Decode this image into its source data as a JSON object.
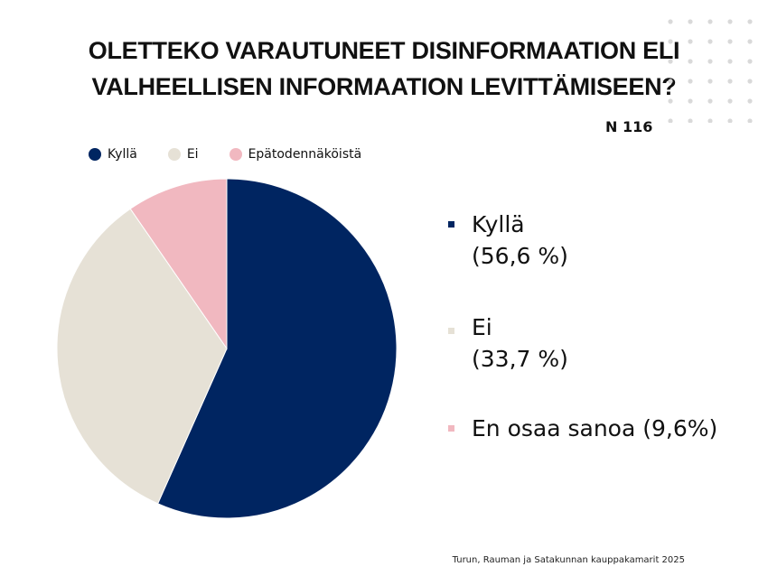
{
  "title": "OLETTEKO VARAUTUNEET DISINFORMAATION ELI VALHEELLISEN INFORMAATION LEVITTÄMISEEN?",
  "n_label": "N 116",
  "source": "Turun, Rauman ja Satakunnan kauppakamarit 2025",
  "colors": {
    "navy": "#002561",
    "beige": "#E6E1D6",
    "pink": "#F1B8C0",
    "dots": "#D9D9D9"
  },
  "chart_data": {
    "type": "pie",
    "title": "OLETTEKO VARAUTUNEET DISINFORMAATION ELI VALHEELLISEN INFORMAATION LEVITTÄMISEEN?",
    "legend": [
      "Kyllä",
      "Ei",
      "Epätodennäköistä"
    ],
    "legend_position": "top-left",
    "slices": [
      {
        "label": "Kyllä",
        "value": 56.6,
        "color": "#002561"
      },
      {
        "label": "Ei",
        "value": 33.7,
        "color": "#E6E1D6"
      },
      {
        "label": "Epätodennäköistä",
        "value": 9.6,
        "color": "#F1B8C0"
      }
    ],
    "annotations": [
      {
        "text_line1": "Kyllä",
        "text_line2": "(56,6 %)",
        "color": "#002561"
      },
      {
        "text_line1": "Ei",
        "text_line2": "(33,7 %)",
        "color": "#E6E1D6"
      },
      {
        "text_line1": "En osaa sanoa (9,6%)",
        "text_line2": "",
        "color": "#F1B8C0"
      }
    ]
  }
}
